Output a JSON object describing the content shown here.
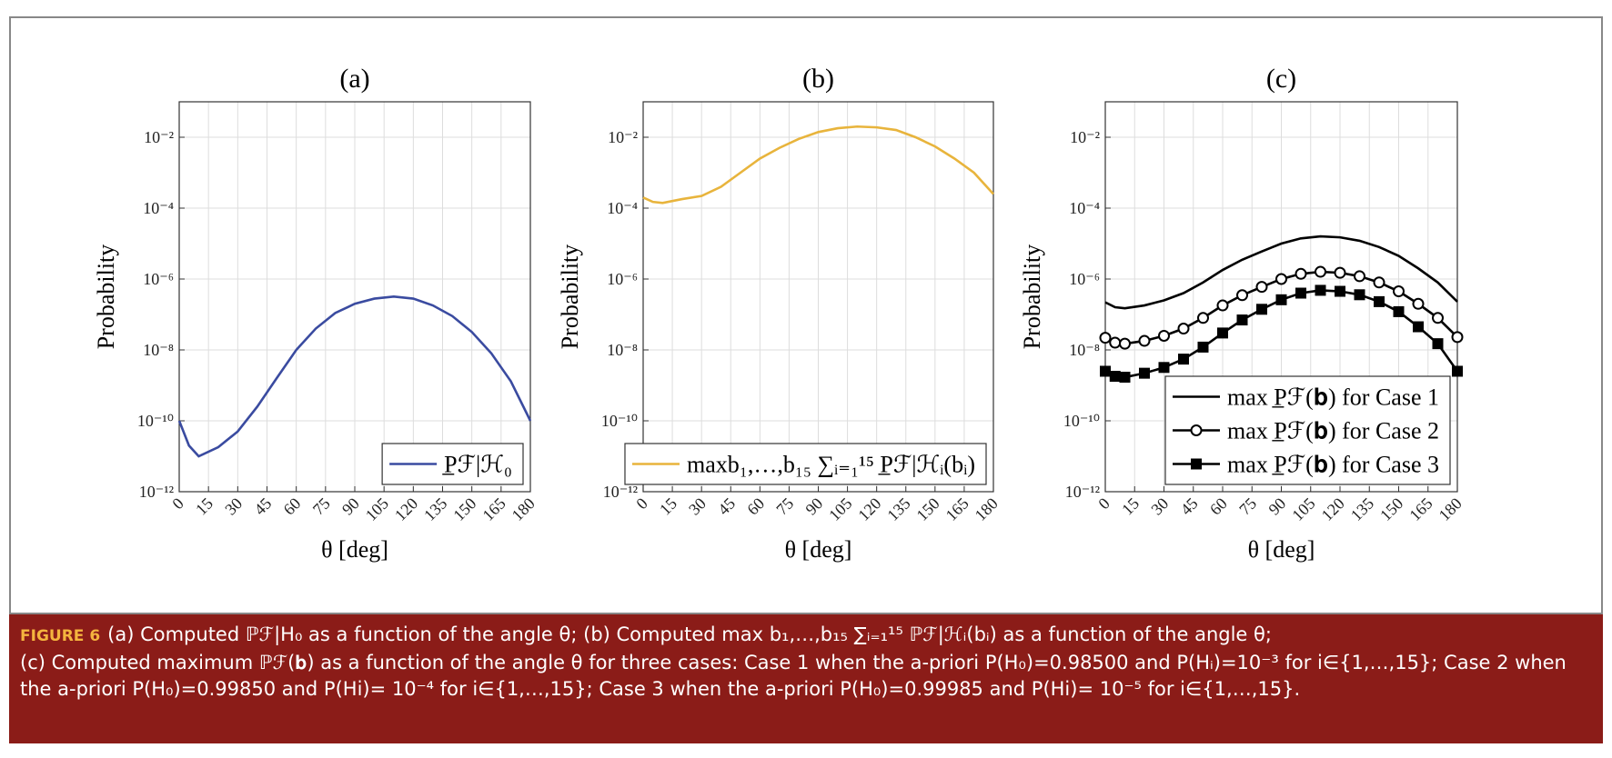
{
  "chart_data": [
    {
      "type": "line",
      "title": "(a)",
      "x_label": "θ [deg]",
      "y_label": "Probability",
      "log_y": true,
      "grid": true,
      "legend": "lower right",
      "x": [
        0,
        5,
        10,
        20,
        30,
        40,
        50,
        60,
        70,
        80,
        90,
        100,
        110,
        120,
        130,
        140,
        150,
        160,
        170,
        180
      ],
      "series": [
        {
          "name": "P̲ℱ|ℋ₀",
          "color": "#3a4ba0",
          "values": [
            1e-10,
            2e-11,
            1e-11,
            1.8e-11,
            5e-11,
            2.5e-10,
            1.6e-09,
            1e-08,
            4e-08,
            1.1e-07,
            2e-07,
            2.8e-07,
            3.2e-07,
            2.8e-07,
            1.8e-07,
            9e-08,
            3.2e-08,
            8e-09,
            1.3e-09,
            1e-10
          ]
        }
      ],
      "xlim": [
        0,
        180
      ],
      "xticks": [
        0,
        15,
        30,
        45,
        60,
        75,
        90,
        105,
        120,
        135,
        150,
        165,
        180
      ],
      "ylim": [
        1e-12,
        0.1
      ],
      "yticks": [
        {
          "value": 1e-12,
          "label": "10⁻¹²"
        },
        {
          "value": 1e-10,
          "label": "10⁻¹⁰"
        },
        {
          "value": 1e-08,
          "label": "10⁻⁸"
        },
        {
          "value": 1e-06,
          "label": "10⁻⁶"
        },
        {
          "value": 0.0001,
          "label": "10⁻⁴"
        },
        {
          "value": 0.01,
          "label": "10⁻²"
        }
      ]
    },
    {
      "type": "line",
      "title": "(b)",
      "x_label": "θ [deg]",
      "y_label": "Probability",
      "log_y": true,
      "grid": true,
      "legend": "lower right",
      "x": [
        0,
        5,
        10,
        20,
        30,
        40,
        50,
        60,
        70,
        80,
        90,
        100,
        110,
        120,
        130,
        140,
        150,
        160,
        170,
        180
      ],
      "series": [
        {
          "name": "maxb₁,…,b₁₅ ∑ᵢ₌₁¹⁵ P̲ℱ|ℋᵢ(bᵢ)",
          "color": "#e8b43c",
          "values": [
            0.0002,
            0.00015,
            0.00014,
            0.00018,
            0.00022,
            0.0004,
            0.001,
            0.0025,
            0.005,
            0.009,
            0.014,
            0.018,
            0.02,
            0.019,
            0.016,
            0.01,
            0.0055,
            0.0025,
            0.001,
            0.00025
          ]
        }
      ],
      "xlim": [
        0,
        180
      ],
      "xticks": [
        0,
        15,
        30,
        45,
        60,
        75,
        90,
        105,
        120,
        135,
        150,
        165,
        180
      ],
      "ylim": [
        1e-12,
        0.1
      ],
      "yticks": [
        {
          "value": 1e-12,
          "label": "10⁻¹²"
        },
        {
          "value": 1e-10,
          "label": "10⁻¹⁰"
        },
        {
          "value": 1e-08,
          "label": "10⁻⁸"
        },
        {
          "value": 1e-06,
          "label": "10⁻⁶"
        },
        {
          "value": 0.0001,
          "label": "10⁻⁴"
        },
        {
          "value": 0.01,
          "label": "10⁻²"
        }
      ]
    },
    {
      "type": "line",
      "title": "(c)",
      "x_label": "θ [deg]",
      "y_label": "Probability",
      "log_y": true,
      "grid": true,
      "legend": "lower right",
      "x": [
        0,
        5,
        10,
        20,
        30,
        40,
        50,
        60,
        70,
        80,
        90,
        100,
        110,
        120,
        130,
        140,
        150,
        160,
        170,
        180
      ],
      "series": [
        {
          "name": "max P̲ℱ(𝐛) for Case 1",
          "color": "#000000",
          "values": [
            2.2e-07,
            1.6e-07,
            1.5e-07,
            1.8e-07,
            2.5e-07,
            4e-07,
            8e-07,
            1.8e-06,
            3.5e-06,
            6e-06,
            1e-05,
            1.4e-05,
            1.6e-05,
            1.5e-05,
            1.2e-05,
            8e-06,
            4.5e-06,
            2e-06,
            8e-07,
            2.3e-07
          ]
        },
        {
          "name": "max P̲ℱ(𝐛) for Case 2",
          "color": "#000000",
          "marker": "circle",
          "values": [
            2.2e-08,
            1.6e-08,
            1.5e-08,
            1.8e-08,
            2.5e-08,
            4e-08,
            8e-08,
            1.8e-07,
            3.5e-07,
            6e-07,
            1e-06,
            1.4e-06,
            1.6e-06,
            1.5e-06,
            1.2e-06,
            8e-07,
            4.5e-07,
            2e-07,
            8e-08,
            2.3e-08
          ]
        },
        {
          "name": "max P̲ℱ(𝐛) for Case 3",
          "color": "#000000",
          "marker": "square",
          "values": [
            2.5e-09,
            1.8e-09,
            1.7e-09,
            2.2e-09,
            3.2e-09,
            5.5e-09,
            1.2e-08,
            3e-08,
            7e-08,
            1.4e-07,
            2.6e-07,
            4e-07,
            4.8e-07,
            4.5e-07,
            3.6e-07,
            2.3e-07,
            1.2e-07,
            4.5e-08,
            1.5e-08,
            2.5e-09
          ]
        }
      ],
      "xlim": [
        0,
        180
      ],
      "xticks": [
        0,
        15,
        30,
        45,
        60,
        75,
        90,
        105,
        120,
        135,
        150,
        165,
        180
      ],
      "ylim": [
        1e-12,
        0.1
      ],
      "yticks": [
        {
          "value": 1e-12,
          "label": "10⁻¹²"
        },
        {
          "value": 1e-10,
          "label": "10⁻¹⁰"
        },
        {
          "value": 1e-08,
          "label": "10⁻⁸"
        },
        {
          "value": 1e-06,
          "label": "10⁻⁶"
        },
        {
          "value": 0.0001,
          "label": "10⁻⁴"
        },
        {
          "value": 0.01,
          "label": "10⁻²"
        }
      ]
    }
  ],
  "caption": {
    "label": "FIGURE 6",
    "lines": [
      "(a) Computed ℙℱ|H₀ as a function of the angle θ; (b) Computed max b₁,…,b₁₅ ∑ᵢ₌₁¹⁵ ℙℱ|ℋᵢ(bᵢ) as a function of the angle θ;",
      "(c) Computed maximum ℙℱ(𝐛) as a function of the angle θ for three cases: Case 1 when the a-priori P(H₀)=0.98500 and P(Hᵢ)=10⁻³ for i∈{1,…,15}; Case 2 when the a-priori P(H₀)=0.99850 and P(Hi)= 10⁻⁴ for i∈{1,…,15}; Case 3 when the a-priori P(H₀)=0.99985 and P(Hi)= 10⁻⁵ for i∈{1,…,15}."
    ]
  }
}
